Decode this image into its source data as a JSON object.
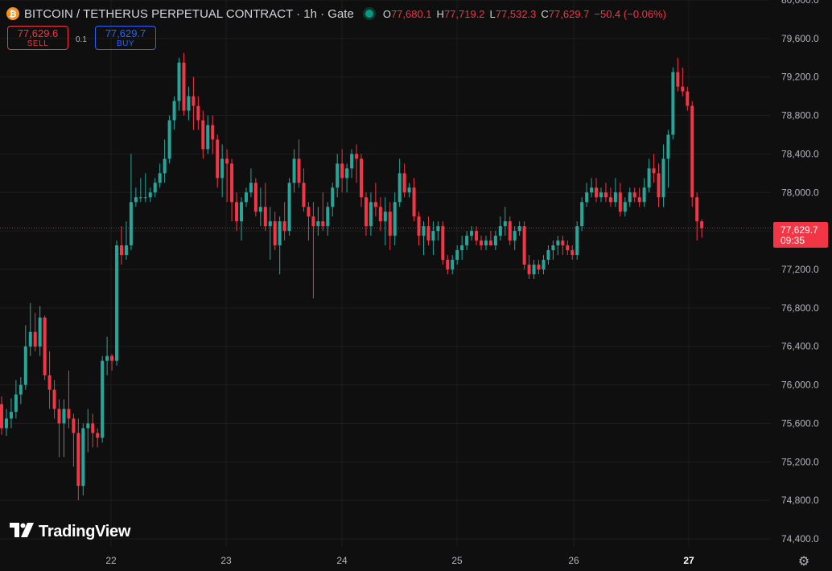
{
  "header": {
    "coin_symbol": "₿",
    "title": "BITCOIN / TETHERUS PERPETUAL CONTRACT · 1h · Gate",
    "ohlc": {
      "o_label": "O",
      "o_value": "77,680.1",
      "h_label": "H",
      "h_value": "77,719.2",
      "l_label": "L",
      "l_value": "77,532.3",
      "c_label": "C",
      "c_value": "77,629.7",
      "change": "−50.4 (−0.06%)"
    }
  },
  "trade": {
    "sell_price": "77,629.6",
    "sell_label": "SELL",
    "spread": "0.1",
    "buy_price": "77,629.7",
    "buy_label": "BUY"
  },
  "current_price": {
    "price": "77,629.7",
    "countdown": "09:35",
    "value": 77629.7
  },
  "logo_text": "TradingView",
  "colors": {
    "up": "#26a69a",
    "down": "#f23645",
    "background": "#0f0f0f",
    "grid": "#1e1e1e",
    "axis_text": "#b2b5be",
    "price_line": "#f23645"
  },
  "chart_data": {
    "type": "candlestick",
    "timeframe": "1h",
    "ylim": [
      74400,
      80000
    ],
    "y_ticks": [
      74400,
      74800,
      75200,
      75600,
      76000,
      76400,
      76800,
      77200,
      77600,
      78000,
      78400,
      78800,
      79200,
      79600,
      80000
    ],
    "y_tick_labels": [
      "74,400.0",
      "74,800.0",
      "75,200.0",
      "75,600.0",
      "76,000.0",
      "76,400.0",
      "76,800.0",
      "77,200.0",
      "77,600.0",
      "78,000.0",
      "78,400.0",
      "78,800.0",
      "79,200.0",
      "79,600.0",
      "80,000.0"
    ],
    "x_ticks": [
      "22",
      "23",
      "24",
      "25",
      "26",
      "27"
    ],
    "grid": true,
    "last_price": 77629.7,
    "candles": [
      [
        75800,
        75880,
        75480,
        75550
      ],
      [
        75550,
        75750,
        75470,
        75650
      ],
      [
        75650,
        75860,
        75550,
        75720
      ],
      [
        75720,
        76050,
        75650,
        75900
      ],
      [
        75900,
        76080,
        75800,
        76000
      ],
      [
        76000,
        76620,
        75950,
        76400
      ],
      [
        76400,
        76850,
        76300,
        76550
      ],
      [
        76550,
        76750,
        76350,
        76400
      ],
      [
        76400,
        76820,
        76300,
        76700
      ],
      [
        76700,
        76720,
        76050,
        76100
      ],
      [
        76100,
        76350,
        75750,
        75950
      ],
      [
        75950,
        76050,
        75650,
        75750
      ],
      [
        75750,
        75850,
        75250,
        75600
      ],
      [
        75600,
        75850,
        75250,
        75750
      ],
      [
        75750,
        76150,
        75550,
        75650
      ],
      [
        75650,
        75700,
        75150,
        75500
      ],
      [
        75500,
        75650,
        74800,
        74950
      ],
      [
        74950,
        75600,
        74850,
        75550
      ],
      [
        75550,
        75750,
        75300,
        75600
      ],
      [
        75600,
        75700,
        75350,
        75500
      ],
      [
        75500,
        75550,
        75350,
        75450
      ],
      [
        75450,
        76300,
        75400,
        76250
      ],
      [
        76250,
        76500,
        76100,
        76300
      ],
      [
        76300,
        76320,
        76150,
        76250
      ],
      [
        76250,
        77500,
        76200,
        77450
      ],
      [
        77450,
        77650,
        77250,
        77350
      ],
      [
        77350,
        77700,
        77300,
        77450
      ],
      [
        77450,
        78400,
        77400,
        77900
      ],
      [
        77900,
        78050,
        77850,
        77950
      ],
      [
        77950,
        78150,
        77900,
        77950
      ],
      [
        77950,
        78200,
        77900,
        77950
      ],
      [
        77950,
        78050,
        77900,
        78000
      ],
      [
        78000,
        78150,
        77950,
        78100
      ],
      [
        78100,
        78300,
        78050,
        78200
      ],
      [
        78200,
        78550,
        78100,
        78350
      ],
      [
        78350,
        78800,
        78300,
        78750
      ],
      [
        78750,
        79000,
        78650,
        78950
      ],
      [
        78950,
        79400,
        78850,
        79350
      ],
      [
        79350,
        79450,
        78800,
        78850
      ],
      [
        78850,
        79100,
        78750,
        79000
      ],
      [
        79000,
        79200,
        78650,
        78900
      ],
      [
        78900,
        79000,
        78650,
        78750
      ],
      [
        78750,
        78850,
        78350,
        78450
      ],
      [
        78450,
        78800,
        78400,
        78700
      ],
      [
        78700,
        78800,
        78400,
        78550
      ],
      [
        78550,
        78600,
        78050,
        78150
      ],
      [
        78150,
        78500,
        77950,
        78350
      ],
      [
        78350,
        78450,
        77900,
        78300
      ],
      [
        78300,
        78350,
        77700,
        77900
      ],
      [
        77900,
        78000,
        77600,
        77700
      ],
      [
        77700,
        77950,
        77500,
        77900
      ],
      [
        77900,
        78050,
        77850,
        78000
      ],
      [
        78000,
        78250,
        77950,
        78100
      ],
      [
        78100,
        78150,
        77750,
        77800
      ],
      [
        77800,
        78050,
        77650,
        77850
      ],
      [
        77850,
        78100,
        77600,
        77650
      ],
      [
        77650,
        77850,
        77300,
        77700
      ],
      [
        77700,
        77800,
        77400,
        77450
      ],
      [
        77450,
        77750,
        77150,
        77700
      ],
      [
        77700,
        77900,
        77500,
        77600
      ],
      [
        77600,
        78150,
        77550,
        78100
      ],
      [
        78100,
        78450,
        78000,
        78350
      ],
      [
        78350,
        78550,
        78050,
        78100
      ],
      [
        78100,
        78250,
        77800,
        77850
      ],
      [
        77850,
        77900,
        77500,
        77750
      ],
      [
        77750,
        77900,
        76900,
        77650
      ],
      [
        77650,
        77850,
        77550,
        77700
      ],
      [
        77700,
        78000,
        77600,
        77650
      ],
      [
        77650,
        77900,
        77550,
        77850
      ],
      [
        77850,
        78100,
        77750,
        78050
      ],
      [
        78050,
        78400,
        77950,
        78300
      ],
      [
        78300,
        78450,
        78000,
        78150
      ],
      [
        78150,
        78300,
        78000,
        78250
      ],
      [
        78250,
        78450,
        78150,
        78400
      ],
      [
        78400,
        78500,
        78100,
        78350
      ],
      [
        78350,
        78400,
        77850,
        77950
      ],
      [
        77950,
        78000,
        77550,
        77650
      ],
      [
        77650,
        78000,
        77550,
        77900
      ],
      [
        77900,
        78100,
        77750,
        77850
      ],
      [
        77850,
        77950,
        77600,
        77700
      ],
      [
        77700,
        77950,
        77450,
        77800
      ],
      [
        77800,
        77900,
        77400,
        77550
      ],
      [
        77550,
        78000,
        77450,
        77900
      ],
      [
        77900,
        78350,
        77850,
        78200
      ],
      [
        78200,
        78300,
        77950,
        78000
      ],
      [
        78000,
        78100,
        77950,
        78050
      ],
      [
        78050,
        78150,
        77700,
        77750
      ],
      [
        77750,
        77800,
        77450,
        77550
      ],
      [
        77550,
        77700,
        77350,
        77650
      ],
      [
        77650,
        77750,
        77450,
        77500
      ],
      [
        77500,
        77700,
        77350,
        77600
      ],
      [
        77600,
        77700,
        77500,
        77650
      ],
      [
        77650,
        77700,
        77250,
        77300
      ],
      [
        77300,
        77350,
        77150,
        77200
      ],
      [
        77200,
        77350,
        77150,
        77300
      ],
      [
        77300,
        77450,
        77250,
        77400
      ],
      [
        77400,
        77550,
        77300,
        77450
      ],
      [
        77450,
        77600,
        77400,
        77550
      ],
      [
        77550,
        77650,
        77500,
        77600
      ],
      [
        77600,
        77650,
        77450,
        77500
      ],
      [
        77500,
        77550,
        77400,
        77450
      ],
      [
        77450,
        77550,
        77400,
        77500
      ],
      [
        77500,
        77600,
        77450,
        77450
      ],
      [
        77450,
        77600,
        77400,
        77550
      ],
      [
        77550,
        77750,
        77500,
        77650
      ],
      [
        77650,
        77850,
        77550,
        77700
      ],
      [
        77700,
        77750,
        77450,
        77500
      ],
      [
        77500,
        77650,
        77400,
        77600
      ],
      [
        77600,
        77700,
        77550,
        77650
      ],
      [
        77650,
        77700,
        77200,
        77250
      ],
      [
        77250,
        77350,
        77100,
        77150
      ],
      [
        77150,
        77300,
        77100,
        77250
      ],
      [
        77250,
        77300,
        77150,
        77200
      ],
      [
        77200,
        77350,
        77150,
        77300
      ],
      [
        77300,
        77450,
        77250,
        77400
      ],
      [
        77400,
        77500,
        77300,
        77450
      ],
      [
        77450,
        77550,
        77350,
        77500
      ],
      [
        77500,
        77550,
        77350,
        77450
      ],
      [
        77450,
        77500,
        77350,
        77400
      ],
      [
        77400,
        77450,
        77300,
        77350
      ],
      [
        77350,
        77700,
        77300,
        77650
      ],
      [
        77650,
        77950,
        77600,
        77900
      ],
      [
        77900,
        78100,
        77850,
        78000
      ],
      [
        78000,
        78150,
        77950,
        78050
      ],
      [
        78050,
        78150,
        77900,
        77950
      ],
      [
        77950,
        78050,
        77900,
        78000
      ],
      [
        78000,
        78100,
        77900,
        77950
      ],
      [
        77950,
        78050,
        77850,
        77900
      ],
      [
        77900,
        78150,
        77850,
        78000
      ],
      [
        78000,
        78100,
        77750,
        77800
      ],
      [
        77800,
        77950,
        77750,
        77900
      ],
      [
        77900,
        78050,
        77850,
        78000
      ],
      [
        78000,
        78050,
        77900,
        77950
      ],
      [
        77950,
        78050,
        77850,
        77900
      ],
      [
        77900,
        78150,
        77850,
        78050
      ],
      [
        78050,
        78350,
        78000,
        78250
      ],
      [
        78250,
        78400,
        78100,
        78200
      ],
      [
        78200,
        78300,
        77850,
        77950
      ],
      [
        77950,
        78500,
        77850,
        78350
      ],
      [
        78350,
        78650,
        78050,
        78600
      ],
      [
        78600,
        79300,
        78550,
        79250
      ],
      [
        79250,
        79400,
        79050,
        79100
      ],
      [
        79100,
        79300,
        79000,
        79050
      ],
      [
        79050,
        79100,
        78850,
        78900
      ],
      [
        78900,
        78950,
        77850,
        77950
      ],
      [
        77950,
        78000,
        77500,
        77700
      ],
      [
        77700,
        77720,
        77530,
        77630
      ]
    ]
  }
}
